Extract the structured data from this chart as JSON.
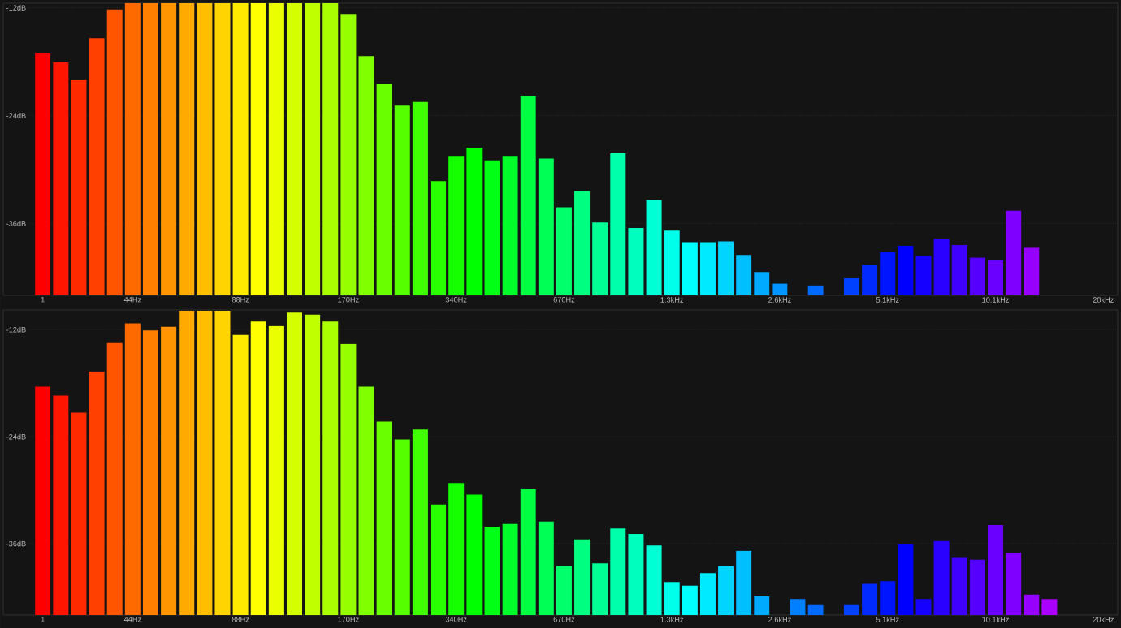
{
  "chart_data": [
    {
      "type": "bar",
      "grid": "y",
      "categories": [
        "1",
        null,
        null,
        null,
        null,
        "44Hz",
        null,
        null,
        null,
        null,
        null,
        "88Hz",
        null,
        null,
        null,
        null,
        null,
        "170Hz",
        null,
        null,
        null,
        null,
        null,
        "340Hz",
        null,
        null,
        null,
        null,
        null,
        "670Hz",
        null,
        null,
        null,
        null,
        null,
        "1.3kHz",
        null,
        null,
        null,
        null,
        null,
        "2.6kHz",
        null,
        null,
        null,
        null,
        null,
        "5.1kHz",
        null,
        null,
        null,
        null,
        null,
        "10.1kHz",
        null,
        null,
        null,
        null,
        null,
        "20kHz"
      ],
      "values": [
        27.0,
        25.9,
        24.0,
        28.6,
        31.8,
        32.5,
        32.5,
        32.5,
        32.5,
        32.5,
        32.5,
        32.5,
        32.5,
        32.5,
        32.5,
        32.5,
        32.5,
        31.3,
        26.6,
        23.5,
        21.1,
        21.5,
        12.7,
        15.5,
        16.4,
        15.0,
        15.5,
        22.2,
        15.2,
        9.8,
        11.6,
        8.1,
        15.8,
        7.5,
        10.6,
        7.2,
        5.9,
        5.9,
        6.0,
        4.5,
        2.6,
        1.3,
        null,
        1.1,
        null,
        1.9,
        3.4,
        4.8,
        5.5,
        4.4,
        6.3,
        5.6,
        4.2,
        3.9,
        9.4,
        5.3,
        null,
        null,
        null,
        null
      ],
      "base": [
        -44,
        -44,
        -44,
        -44,
        -44,
        -44,
        -44,
        -44,
        -44,
        -44,
        -44,
        -44,
        -44,
        -44,
        -44,
        -44,
        -44,
        -44,
        -44,
        -44,
        -44,
        -44,
        -44,
        -44,
        -44,
        -44,
        -44,
        -44,
        -44,
        -44,
        -44,
        -44,
        -44,
        -44,
        -44,
        -44,
        -44,
        -44,
        -44,
        -44,
        -44,
        -44,
        null,
        -44,
        null,
        -44,
        -44,
        -44,
        -44,
        -44,
        -44,
        -44,
        -44,
        -44,
        -44,
        -44,
        null,
        null,
        null,
        null
      ],
      "colors": [
        "#ff0000",
        "#ff1500",
        "#ff2a00",
        "#ff4000",
        "#ff5500",
        "#ff6a00",
        "#ff8000",
        "#ff9500",
        "#ffaa00",
        "#ffbf00",
        "#ffd400",
        "#ffea00",
        "#ffff00",
        "#eaff00",
        "#d4ff00",
        "#bfff00",
        "#aaff00",
        "#95ff00",
        "#80ff00",
        "#6aff00",
        "#55ff00",
        "#40ff00",
        "#2aff00",
        "#15ff00",
        "#00ff00",
        "#00ff15",
        "#00ff2a",
        "#00ff40",
        "#00ff55",
        "#00ff6a",
        "#00ff80",
        "#00ff95",
        "#00ffaa",
        "#00ffbf",
        "#00ffd4",
        "#00ffea",
        "#00ffff",
        "#00eaff",
        "#00d4ff",
        "#00bfff",
        "#00aaff",
        "#0095ff",
        "#0080ff",
        "#006aff",
        "#0055ff",
        "#0040ff",
        "#002aff",
        "#0015ff",
        "#0000ff",
        "#1500ff",
        "#2a00ff",
        "#4000ff",
        "#5500ff",
        "#6a00ff",
        "#8000ff",
        "#9500ff",
        "#aa00ff",
        "#b500ff",
        "#c000ff",
        "#ca00ff"
      ],
      "ylim": [
        -44,
        -11.5
      ],
      "yticks": [
        {
          "value": -12,
          "label": "-12dB"
        },
        {
          "value": -24,
          "label": "-24dB"
        },
        {
          "value": -36,
          "label": "-36dB"
        }
      ]
    },
    {
      "type": "bar",
      "grid": "y",
      "categories": [
        "1",
        null,
        null,
        null,
        null,
        "44Hz",
        null,
        null,
        null,
        null,
        null,
        "88Hz",
        null,
        null,
        null,
        null,
        null,
        "170Hz",
        null,
        null,
        null,
        null,
        null,
        "340Hz",
        null,
        null,
        null,
        null,
        null,
        "670Hz",
        null,
        null,
        null,
        null,
        null,
        "1.3kHz",
        null,
        null,
        null,
        null,
        null,
        "2.6kHz",
        null,
        null,
        null,
        null,
        null,
        "5.1kHz",
        null,
        null,
        null,
        null,
        null,
        "10.1kHz",
        null,
        null,
        null,
        null,
        null,
        "20kHz"
      ],
      "values": [
        25.6,
        24.6,
        22.7,
        27.3,
        30.5,
        32.7,
        31.9,
        32.3,
        34.1,
        34.1,
        34.1,
        31.4,
        32.9,
        32.4,
        33.9,
        33.7,
        32.9,
        30.4,
        25.6,
        21.7,
        19.7,
        20.8,
        12.4,
        14.8,
        13.5,
        9.9,
        10.2,
        14.1,
        10.5,
        5.5,
        8.5,
        5.8,
        9.7,
        9.1,
        7.8,
        3.7,
        3.3,
        4.7,
        5.5,
        7.2,
        2.1,
        null,
        1.8,
        1.1,
        null,
        1.1,
        3.5,
        3.8,
        7.9,
        1.8,
        8.3,
        6.4,
        6.2,
        10.1,
        7.0,
        2.3,
        1.8,
        null,
        null,
        null
      ],
      "base": [
        -44,
        -44,
        -44,
        -44,
        -44,
        -44,
        -44,
        -44,
        -44,
        -44,
        -44,
        -44,
        -44,
        -44,
        -44,
        -44,
        -44,
        -44,
        -44,
        -44,
        -44,
        -44,
        -44,
        -44,
        -44,
        -44,
        -44,
        -44,
        -44,
        -44,
        -44,
        -44,
        -44,
        -44,
        -44,
        -44,
        -44,
        -44,
        -44,
        -44,
        -44,
        null,
        -44,
        -44,
        null,
        -44,
        -44,
        -44,
        -44,
        -44,
        -44,
        -44,
        -44,
        -44,
        -44,
        -44,
        -44,
        null,
        null,
        null
      ],
      "colors": [
        "#ff0000",
        "#ff1500",
        "#ff2a00",
        "#ff4000",
        "#ff5500",
        "#ff6a00",
        "#ff8000",
        "#ff9500",
        "#ffaa00",
        "#ffbf00",
        "#ffd400",
        "#ffea00",
        "#ffff00",
        "#eaff00",
        "#d4ff00",
        "#bfff00",
        "#aaff00",
        "#95ff00",
        "#80ff00",
        "#6aff00",
        "#55ff00",
        "#40ff00",
        "#2aff00",
        "#15ff00",
        "#00ff00",
        "#00ff15",
        "#00ff2a",
        "#00ff40",
        "#00ff55",
        "#00ff6a",
        "#00ff80",
        "#00ff95",
        "#00ffaa",
        "#00ffbf",
        "#00ffd4",
        "#00ffea",
        "#00ffff",
        "#00eaff",
        "#00d4ff",
        "#00bfff",
        "#00aaff",
        "#0095ff",
        "#0080ff",
        "#006aff",
        "#0055ff",
        "#0040ff",
        "#002aff",
        "#0015ff",
        "#0000ff",
        "#1500ff",
        "#2a00ff",
        "#4000ff",
        "#5500ff",
        "#6a00ff",
        "#8000ff",
        "#9500ff",
        "#aa00ff",
        "#b500ff",
        "#c000ff",
        "#ca00ff"
      ],
      "ylim": [
        -44,
        -9.8
      ],
      "yticks": [
        {
          "value": -12,
          "label": "-12dB"
        },
        {
          "value": -24,
          "label": "-24dB"
        },
        {
          "value": -36,
          "label": "-36dB"
        }
      ]
    }
  ]
}
